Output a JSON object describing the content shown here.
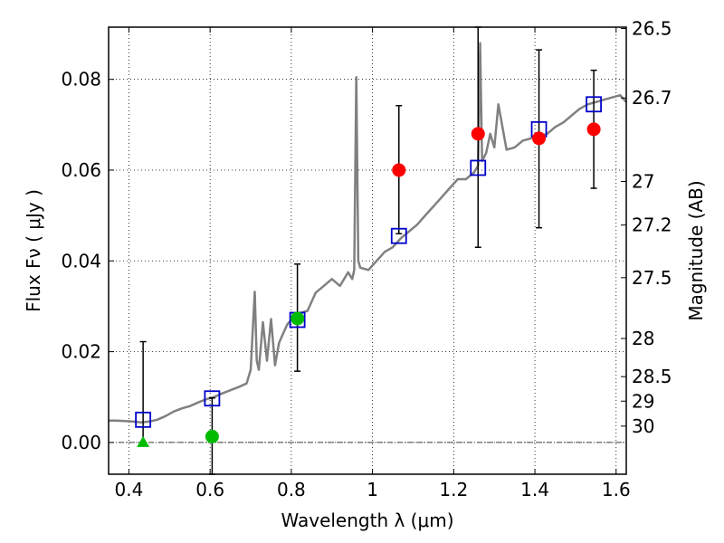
{
  "chart_data": {
    "type": "scatter",
    "xlabel": "Wavelength  λ (μm)",
    "ylabel": "Flux  Fν  ( μJy )",
    "ylabel_right": "Magnitude (AB)",
    "xlim": [
      0.35,
      1.625
    ],
    "ylim": [
      -0.007,
      0.0915
    ],
    "grid": true,
    "x_ticks": [
      {
        "value": 0.4,
        "label": "0.4"
      },
      {
        "value": 0.6,
        "label": "0.6"
      },
      {
        "value": 0.8,
        "label": "0.8"
      },
      {
        "value": 1.0,
        "label": "1"
      },
      {
        "value": 1.2,
        "label": "1.2"
      },
      {
        "value": 1.4,
        "label": "1.4"
      },
      {
        "value": 1.6,
        "label": "1.6"
      }
    ],
    "y_ticks": [
      {
        "value": 0.0,
        "label": "0.00"
      },
      {
        "value": 0.02,
        "label": "0.02"
      },
      {
        "value": 0.04,
        "label": "0.04"
      },
      {
        "value": 0.06,
        "label": "0.06"
      },
      {
        "value": 0.08,
        "label": "0.08"
      }
    ],
    "y_right_ticks": [
      {
        "flux": 0.0912,
        "label": "26.5"
      },
      {
        "flux": 0.0759,
        "label": "26.7"
      },
      {
        "flux": 0.0575,
        "label": "27"
      },
      {
        "flux": 0.0479,
        "label": "27.2"
      },
      {
        "flux": 0.0363,
        "label": "27.5"
      },
      {
        "flux": 0.0229,
        "label": "28"
      },
      {
        "flux": 0.0145,
        "label": "28.5"
      },
      {
        "flux": 0.0091,
        "label": "29"
      },
      {
        "flux": 0.0036,
        "label": "30"
      }
    ],
    "colors": {
      "spectrum": "#808080",
      "model_box": "#0000cc",
      "red_points": "#ff0000",
      "green_points": "#00bb00",
      "errorbar": "#000000"
    },
    "spectrum": {
      "x": [
        0.35,
        0.37,
        0.39,
        0.41,
        0.43,
        0.45,
        0.47,
        0.49,
        0.51,
        0.53,
        0.55,
        0.57,
        0.59,
        0.61,
        0.63,
        0.65,
        0.67,
        0.69,
        0.7,
        0.71,
        0.715,
        0.72,
        0.73,
        0.74,
        0.75,
        0.76,
        0.77,
        0.78,
        0.79,
        0.8,
        0.82,
        0.84,
        0.86,
        0.88,
        0.9,
        0.92,
        0.94,
        0.95,
        0.955,
        0.96,
        0.965,
        0.97,
        0.99,
        1.01,
        1.03,
        1.05,
        1.07,
        1.09,
        1.11,
        1.13,
        1.15,
        1.17,
        1.19,
        1.21,
        1.23,
        1.25,
        1.26,
        1.265,
        1.27,
        1.28,
        1.29,
        1.3,
        1.31,
        1.33,
        1.35,
        1.37,
        1.39,
        1.41,
        1.43,
        1.45,
        1.47,
        1.49,
        1.51,
        1.53,
        1.55,
        1.57,
        1.59,
        1.61,
        1.625
      ],
      "y": [
        0.0048,
        0.0048,
        0.0047,
        0.0046,
        0.0044,
        0.0046,
        0.005,
        0.0058,
        0.0068,
        0.0075,
        0.008,
        0.0088,
        0.0095,
        0.01,
        0.0108,
        0.0115,
        0.0122,
        0.013,
        0.016,
        0.0332,
        0.018,
        0.016,
        0.0265,
        0.018,
        0.0272,
        0.017,
        0.022,
        0.024,
        0.026,
        0.027,
        0.0285,
        0.029,
        0.033,
        0.0345,
        0.036,
        0.0345,
        0.0375,
        0.036,
        0.038,
        0.0805,
        0.04,
        0.0385,
        0.038,
        0.04,
        0.042,
        0.043,
        0.045,
        0.0465,
        0.048,
        0.05,
        0.052,
        0.054,
        0.056,
        0.058,
        0.058,
        0.0595,
        0.061,
        0.088,
        0.062,
        0.0638,
        0.068,
        0.065,
        0.0745,
        0.0645,
        0.065,
        0.0665,
        0.067,
        0.0675,
        0.068,
        0.0695,
        0.0705,
        0.072,
        0.0735,
        0.0745,
        0.075,
        0.0755,
        0.076,
        0.0765,
        0.075
      ]
    },
    "model_boxes": [
      {
        "x": 0.435,
        "y": 0.005
      },
      {
        "x": 0.605,
        "y": 0.0097
      },
      {
        "x": 0.815,
        "y": 0.027
      },
      {
        "x": 1.065,
        "y": 0.0455
      },
      {
        "x": 1.26,
        "y": 0.0605
      },
      {
        "x": 1.41,
        "y": 0.069
      },
      {
        "x": 1.545,
        "y": 0.0745
      }
    ],
    "observed": [
      {
        "x": 0.435,
        "y": 0.0,
        "color": "green",
        "marker": "triangle",
        "yerr_lo": 0.0,
        "yerr_hi": 0.0222
      },
      {
        "x": 0.605,
        "y": 0.0013,
        "color": "green",
        "marker": "circle",
        "yerr_lo": -0.007,
        "yerr_hi": 0.0098
      },
      {
        "x": 0.815,
        "y": 0.0273,
        "color": "green",
        "marker": "circle",
        "yerr_lo": 0.0157,
        "yerr_hi": 0.0393
      },
      {
        "x": 1.065,
        "y": 0.06,
        "color": "red",
        "marker": "circle",
        "yerr_lo": 0.046,
        "yerr_hi": 0.0742
      },
      {
        "x": 1.26,
        "y": 0.068,
        "color": "red",
        "marker": "circle",
        "yerr_lo": 0.043,
        "yerr_hi": 0.0915
      },
      {
        "x": 1.41,
        "y": 0.067,
        "color": "red",
        "marker": "circle",
        "yerr_lo": 0.0473,
        "yerr_hi": 0.0865
      },
      {
        "x": 1.545,
        "y": 0.069,
        "color": "red",
        "marker": "circle",
        "yerr_lo": 0.056,
        "yerr_hi": 0.082
      }
    ]
  }
}
